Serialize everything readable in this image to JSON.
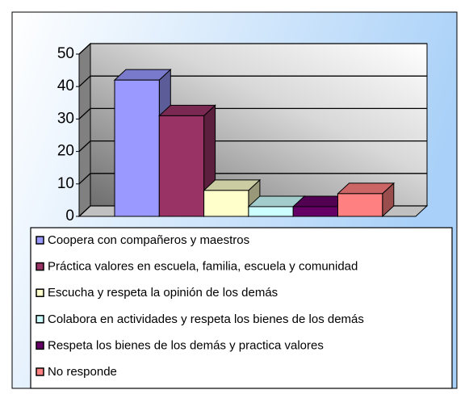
{
  "chart_data": {
    "type": "bar3d",
    "categories": [
      "Coopera con compañeros y maestros",
      "Práctica valores en escuela, familia, escuela y comunidad",
      "Escucha y respeta la opinión de los demás",
      "Colabora en actividades y respeta los bienes de los demás",
      "Respeta los bienes de los demás y practica valores",
      "No responde"
    ],
    "values": [
      42,
      31,
      8,
      3,
      3,
      7
    ],
    "colors": [
      "#9999ff",
      "#993366",
      "#ffffcc",
      "#ccffff",
      "#660066",
      "#ff8080"
    ],
    "ylim": [
      0,
      50
    ],
    "yticks": [
      0,
      10,
      20,
      30,
      40,
      50
    ],
    "grid": true,
    "legend": "bottom"
  }
}
